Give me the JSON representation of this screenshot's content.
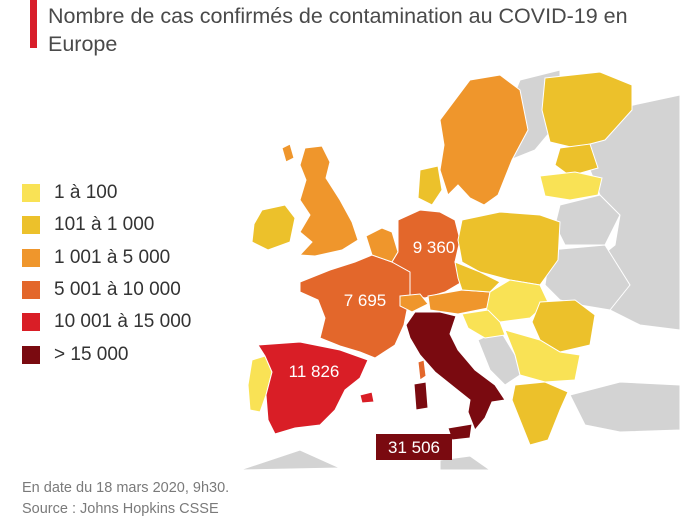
{
  "title": "Nombre de cas confirmés de contamination au COVID-19 en Europe",
  "colors": {
    "accent": "#d81e2a",
    "no_data": "#d3d3d3",
    "c1": "#f9e255",
    "c2": "#ecc12b",
    "c3": "#ef962c",
    "c4": "#e3672b",
    "c5": "#d91e26",
    "c6": "#7a0a10"
  },
  "legend": [
    {
      "label": "1 à 100",
      "color": "#f9e255"
    },
    {
      "label": "101 à 1 000",
      "color": "#ecc12b"
    },
    {
      "label": "1 001 à 5 000",
      "color": "#ef962c"
    },
    {
      "label": "5 001 à 10 000",
      "color": "#e3672b"
    },
    {
      "label": "10 001 à 15 000",
      "color": "#d91e26"
    },
    {
      "label": "> 15 000",
      "color": "#7a0a10"
    }
  ],
  "labels": {
    "germany": "9 360",
    "france": "7 695",
    "spain": "11 826",
    "italy": "31 506"
  },
  "footer": {
    "date": "En date du 18 mars 2020, 9h30.",
    "source": "Source : Johns Hopkins CSSE"
  }
}
